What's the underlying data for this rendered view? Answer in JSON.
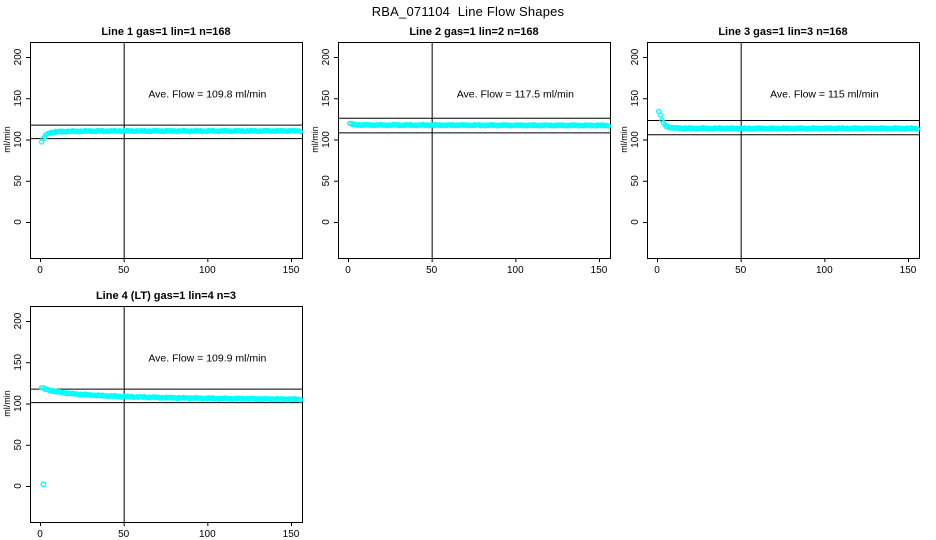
{
  "window": {
    "title": "RBA_071104  Line Flow Shapes"
  },
  "colors": {
    "background": "#FFFFFF",
    "marker": "#00FFFF",
    "axis": "#000000",
    "text": "#000000"
  },
  "chart_data": {
    "type": "scatter",
    "title": "RBA_071104  Line Flow Shapes",
    "ylabel": "ml/min",
    "xlabel": "",
    "x_ticks": [
      0,
      50,
      100,
      150
    ],
    "y_ticks": [
      0,
      50,
      100,
      150,
      200
    ],
    "xlim": [
      -6.5,
      156.6
    ],
    "ylim": [
      -43.6,
      218.2
    ],
    "grid": false,
    "legend": "none",
    "marker": "open-circle",
    "marker_color": "#00FFFF",
    "panels": [
      {
        "title": "Line 1 gas=1 lin=1 n=168",
        "annotation": "Ave. Flow =  109.8  ml/min",
        "ave_flow": 109.8,
        "n": 168,
        "ref_line_upper": 118.0,
        "ref_line_lower": 101.6,
        "ref_line_vertical_x": 50,
        "points_x": [
          1,
          2,
          3,
          4,
          5,
          6,
          8,
          10,
          15,
          20,
          30,
          50,
          80,
          110,
          150,
          156
        ],
        "points_y": [
          97,
          101,
          104,
          106,
          107.5,
          108.3,
          109,
          109.4,
          109.8,
          110,
          110.2,
          110.3,
          110.3,
          110.3,
          110.4,
          110.4
        ]
      },
      {
        "title": "Line 2 gas=1 lin=2 n=168",
        "annotation": "Ave. Flow =  117.5  ml/min",
        "ave_flow": 117.5,
        "n": 168,
        "ref_line_upper": 126.3,
        "ref_line_lower": 108.7,
        "ref_line_vertical_x": 50,
        "points_x": [
          1,
          2,
          3,
          5,
          10,
          20,
          50,
          80,
          110,
          140,
          156
        ],
        "points_y": [
          119.5,
          118.6,
          118.1,
          117.8,
          117.6,
          117.5,
          117.4,
          117.3,
          117.2,
          117.1,
          117.0
        ]
      },
      {
        "title": "Line 3 gas=1 lin=3 n=168",
        "annotation": "Ave. Flow =  115  ml/min",
        "ave_flow": 115,
        "n": 168,
        "ref_line_upper": 123.6,
        "ref_line_lower": 106.4,
        "ref_line_vertical_x": 50,
        "points_x": [
          1,
          2,
          3,
          4,
          5,
          6,
          8,
          10,
          15,
          20,
          50,
          80,
          110,
          140,
          156
        ],
        "points_y": [
          134,
          129,
          123,
          119,
          116.8,
          115.5,
          114.5,
          114,
          113.7,
          113.5,
          113.4,
          113.4,
          113.5,
          113.4,
          113.4
        ]
      },
      {
        "title": "Line 4 (LT) gas=1 lin=4 n=3",
        "annotation": "Ave. Flow =  109.9  ml/min",
        "ave_flow": 109.9,
        "n": 3,
        "ref_line_upper": 118.1,
        "ref_line_lower": 101.7,
        "ref_line_vertical_x": 50,
        "points_x": [
          1,
          3,
          5,
          8,
          12,
          16,
          20,
          25,
          30,
          40,
          50,
          60,
          70,
          80,
          90,
          100,
          110,
          120,
          130,
          140,
          150,
          156
        ],
        "points_y": [
          119,
          117.4,
          116.3,
          115,
          113.6,
          112.6,
          111.7,
          110.9,
          110.2,
          109.2,
          108.4,
          107.8,
          107.3,
          106.9,
          106.6,
          106.3,
          106,
          105.8,
          105.6,
          105.4,
          105.2,
          105.1
        ],
        "outlier": [
          2,
          2
        ]
      }
    ]
  }
}
